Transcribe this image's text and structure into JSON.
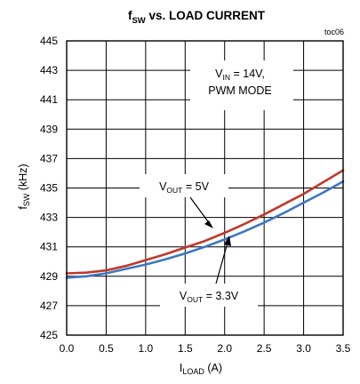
{
  "chart_data": {
    "type": "line",
    "title": {
      "main": "f",
      "sub": "SW",
      "rest": " vs. LOAD CURRENT"
    },
    "tag": "toc06",
    "xlabel": {
      "main": "I",
      "sub": "LOAD",
      "rest": " (A)"
    },
    "ylabel": {
      "main": "f",
      "sub": "SW",
      "rest": " (kHz)"
    },
    "xlim": [
      0,
      3.5
    ],
    "ylim": [
      425,
      445
    ],
    "xticks": [
      0.0,
      0.5,
      1.0,
      1.5,
      2.0,
      2.5,
      3.0,
      3.5
    ],
    "xtick_labels": [
      "0.0",
      "0.5",
      "1.0",
      "1.5",
      "2.0",
      "2.5",
      "3.0",
      "3.5"
    ],
    "yticks": [
      425,
      427,
      429,
      431,
      433,
      435,
      437,
      439,
      441,
      443,
      445
    ],
    "grid": true,
    "conditions": {
      "line1": {
        "main": "V",
        "sub": "IN",
        "rest": " = 14V,"
      },
      "line2": "PWM MODE"
    },
    "series": [
      {
        "color": "#c0392b",
        "label": {
          "main": "V",
          "sub": "OUT",
          "rest": " = 5V"
        },
        "x": [
          0.0,
          0.25,
          0.5,
          0.75,
          1.0,
          1.25,
          1.5,
          1.75,
          2.0,
          2.25,
          2.5,
          2.75,
          3.0,
          3.25,
          3.5
        ],
        "values": [
          429.2,
          429.25,
          429.4,
          429.7,
          430.1,
          430.5,
          430.95,
          431.4,
          431.95,
          432.55,
          433.2,
          433.9,
          434.6,
          435.4,
          436.2
        ]
      },
      {
        "color": "#3b78c2",
        "label": {
          "main": "V",
          "sub": "OUT",
          "rest": " = 3.3V"
        },
        "x": [
          0.0,
          0.25,
          0.5,
          0.75,
          1.0,
          1.25,
          1.5,
          1.75,
          2.0,
          2.25,
          2.5,
          2.75,
          3.0,
          3.25,
          3.5
        ],
        "values": [
          428.9,
          429.0,
          429.2,
          429.5,
          429.8,
          430.15,
          430.55,
          431.0,
          431.5,
          432.05,
          432.65,
          433.3,
          434.0,
          434.7,
          435.45
        ]
      }
    ]
  }
}
